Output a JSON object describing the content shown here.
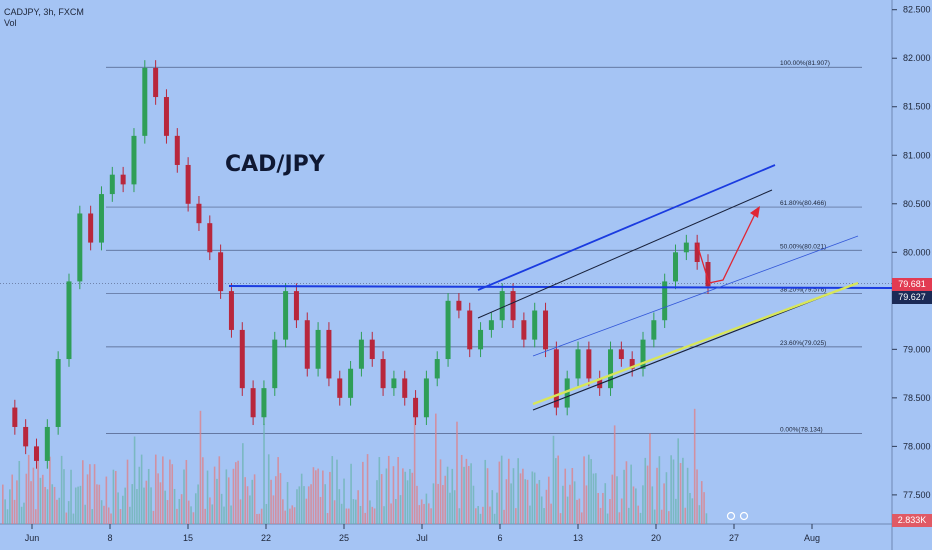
{
  "header": {
    "symbol_line": "CADJPY, 3h, FXCM",
    "volume_label": "Vol"
  },
  "chart_data": {
    "type": "candlestick",
    "title": "CAD/JPY",
    "x_ticks": [
      "Jun",
      "8",
      "15",
      "22",
      "25",
      "Jul",
      "6",
      "13",
      "20",
      "27",
      "Aug"
    ],
    "y_ticks": [
      "82.500",
      "82.000",
      "81.500",
      "81.000",
      "80.500",
      "80.000",
      "79.500",
      "79.000",
      "78.500",
      "78.000",
      "77.500"
    ],
    "ylim": [
      77.2,
      82.6
    ],
    "price_marker": "79.681",
    "current_price_label": "79.627",
    "volume_marker": "2.833K",
    "fibonacci_levels": [
      {
        "label": "100.00%(81.907)",
        "price": 81.907
      },
      {
        "label": "61.80%(80.466)",
        "price": 80.466
      },
      {
        "label": "50.00%(80.021)",
        "price": 80.021
      },
      {
        "label": "38.20%(79.576)",
        "price": 79.576
      },
      {
        "label": "23.60%(79.025)",
        "price": 79.025
      },
      {
        "label": "0.00%(78.134)",
        "price": 78.134
      }
    ],
    "price_path": [
      [
        "Jun",
        78.4
      ],
      [
        "Jun",
        78.2
      ],
      [
        "Jun",
        78.0
      ],
      [
        "Jun",
        77.85
      ],
      [
        "Jun",
        78.2
      ],
      [
        "Jun",
        78.9
      ],
      [
        "Jun",
        79.7
      ],
      [
        "Jun",
        80.4
      ],
      [
        "Jun",
        80.1
      ],
      [
        "Jun",
        80.6
      ],
      [
        "Jun",
        80.8
      ],
      [
        "Jun",
        80.7
      ],
      [
        "8",
        81.2
      ],
      [
        "8",
        81.9
      ],
      [
        "8",
        81.6
      ],
      [
        "8",
        81.2
      ],
      [
        "8",
        80.9
      ],
      [
        "8",
        80.5
      ],
      [
        "8",
        80.3
      ],
      [
        "8",
        80.0
      ],
      [
        "15",
        79.6
      ],
      [
        "15",
        79.2
      ],
      [
        "15",
        78.6
      ],
      [
        "15",
        78.3
      ],
      [
        "15",
        78.6
      ],
      [
        "15",
        79.1
      ],
      [
        "15",
        79.6
      ],
      [
        "15",
        79.3
      ],
      [
        "22",
        78.8
      ],
      [
        "22",
        79.2
      ],
      [
        "22",
        78.7
      ],
      [
        "22",
        78.5
      ],
      [
        "22",
        78.8
      ],
      [
        "22",
        79.1
      ],
      [
        "22",
        78.9
      ],
      [
        "25",
        78.6
      ],
      [
        "25",
        78.7
      ],
      [
        "25",
        78.5
      ],
      [
        "25",
        78.3
      ],
      [
        "25",
        78.7
      ],
      [
        "25",
        78.9
      ],
      [
        "Jul",
        79.5
      ],
      [
        "Jul",
        79.4
      ],
      [
        "Jul",
        79.0
      ],
      [
        "Jul",
        79.2
      ],
      [
        "6",
        79.3
      ],
      [
        "6",
        79.6
      ],
      [
        "6",
        79.3
      ],
      [
        "6",
        79.1
      ],
      [
        "6",
        79.4
      ],
      [
        "6",
        79.0
      ],
      [
        "13",
        78.4
      ],
      [
        "13",
        78.7
      ],
      [
        "13",
        79.0
      ],
      [
        "13",
        78.7
      ],
      [
        "13",
        78.6
      ],
      [
        "13",
        79.0
      ],
      [
        "20",
        78.9
      ],
      [
        "20",
        78.8
      ],
      [
        "20",
        79.1
      ],
      [
        "20",
        79.3
      ],
      [
        "20",
        79.7
      ],
      [
        "20",
        80.0
      ],
      [
        "20",
        80.1
      ],
      [
        "20",
        79.9
      ],
      [
        "20",
        79.65
      ]
    ],
    "volume_note": "volume bars along bottom, green and red"
  }
}
